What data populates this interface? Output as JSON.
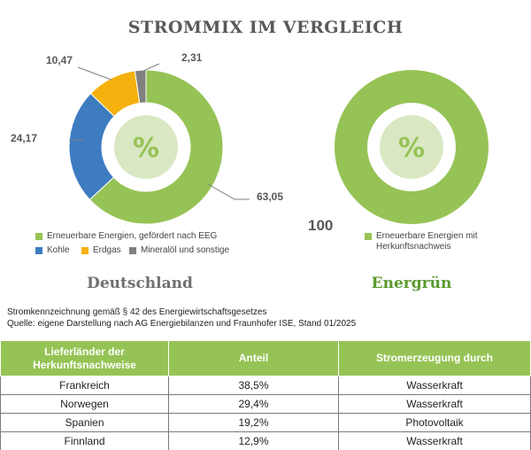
{
  "title": "STROMMIX IM VERGLEICH",
  "chart_data": [
    {
      "type": "pie",
      "name": "Deutschland",
      "center_label": "%",
      "slices": [
        {
          "label": "Erneuerbare Energien, gefördert nach EEG",
          "value": 63.05,
          "value_text": "63,05",
          "color": "#96c355"
        },
        {
          "label": "Kohle",
          "value": 24.17,
          "value_text": "24,17",
          "color": "#3d7cc0"
        },
        {
          "label": "Erdgas",
          "value": 10.47,
          "value_text": "10,47",
          "color": "#f5b20e"
        },
        {
          "label": "Mineralöl und sonstige",
          "value": 2.31,
          "value_text": "2,31",
          "color": "#808080"
        }
      ]
    },
    {
      "type": "pie",
      "name": "Energrün",
      "center_label": "%",
      "slices": [
        {
          "label": "Erneuerbare Energien mit Herkunftsnachweis",
          "value": 100,
          "value_text": "100",
          "color": "#96c355"
        }
      ]
    }
  ],
  "colors": {
    "green": "#96c355",
    "center_light": "#d9e8c2",
    "center_text": "#96c355",
    "deutschland_label": "#707070",
    "energruen_label": "#5a9a2e"
  },
  "source": {
    "line1": "Stromkennzeichnung gemäß § 42 des Energiewirtschaftsgesetzes",
    "line2": "Quelle: eigene Darstellung nach AG Energiebilanzen und Fraunhofer ISE, Stand 01/2025"
  },
  "table": {
    "headers": [
      "Lieferländer der Herkunftsnachweise",
      "Anteil",
      "Stromerzeugung durch"
    ],
    "rows": [
      [
        "Frankreich",
        "38,5%",
        "Wasserkraft"
      ],
      [
        "Norwegen",
        "29,4%",
        "Wasserkraft"
      ],
      [
        "Spanien",
        "19,2%",
        "Photovoltaik"
      ],
      [
        "Finnland",
        "12,9%",
        "Wasserkraft"
      ]
    ]
  }
}
